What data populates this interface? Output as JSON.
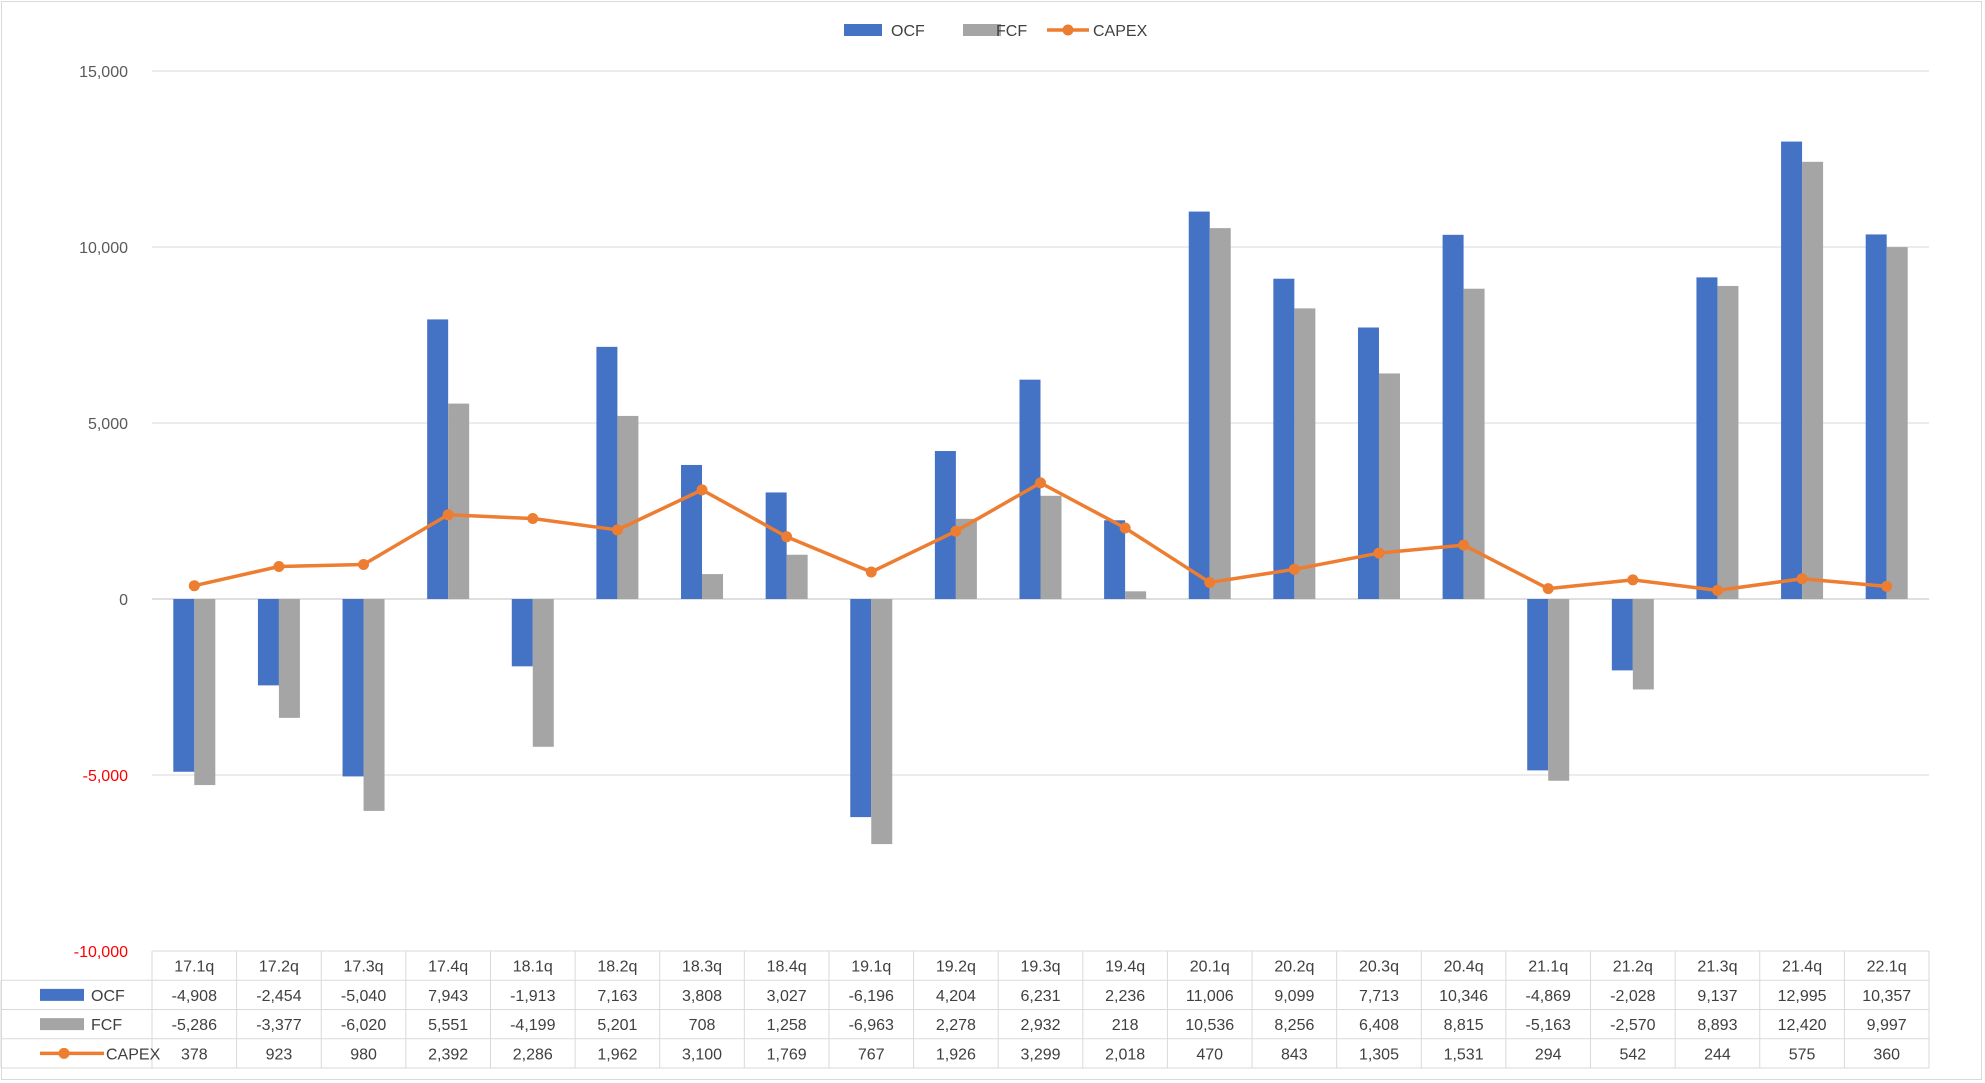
{
  "chart_data": {
    "type": "bar",
    "categories": [
      "17.1q",
      "17.2q",
      "17.3q",
      "17.4q",
      "18.1q",
      "18.2q",
      "18.3q",
      "18.4q",
      "19.1q",
      "19.2q",
      "19.3q",
      "19.4q",
      "20.1q",
      "20.2q",
      "20.3q",
      "20.4q",
      "21.1q",
      "21.2q",
      "21.3q",
      "21.4q",
      "22.1q"
    ],
    "series": [
      {
        "name": "OCF",
        "type": "bar",
        "color": "#4472c4",
        "values": [
          -4908,
          -2454,
          -5040,
          7943,
          -1913,
          7163,
          3808,
          3027,
          -6196,
          4204,
          6231,
          2236,
          11006,
          9099,
          7713,
          10346,
          -4869,
          -2028,
          9137,
          12995,
          10357
        ],
        "labels": [
          "-4,908",
          "-2,454",
          "-5,040",
          "7,943",
          "-1,913",
          "7,163",
          "3,808",
          "3,027",
          "-6,196",
          "4,204",
          "6,231",
          "2,236",
          "11,006",
          "9,099",
          "7,713",
          "10,346",
          "-4,869",
          "-2,028",
          "9,137",
          "12,995",
          "10,357"
        ]
      },
      {
        "name": "FCF",
        "type": "bar",
        "color": "#a5a5a5",
        "values": [
          -5286,
          -3377,
          -6020,
          5551,
          -4199,
          5201,
          708,
          1258,
          -6963,
          2278,
          2932,
          218,
          10536,
          8256,
          6408,
          8815,
          -5163,
          -2570,
          8893,
          12420,
          9997
        ],
        "labels": [
          "-5,286",
          "-3,377",
          "-6,020",
          "5,551",
          "-4,199",
          "5,201",
          "708",
          "1,258",
          "-6,963",
          "2,278",
          "2,932",
          "218",
          "10,536",
          "8,256",
          "6,408",
          "8,815",
          "-5,163",
          "-2,570",
          "8,893",
          "12,420",
          "9,997"
        ]
      },
      {
        "name": "CAPEX",
        "type": "line",
        "color": "#ed7d31",
        "values": [
          378,
          923,
          980,
          2392,
          2286,
          1962,
          3100,
          1769,
          767,
          1926,
          3299,
          2018,
          470,
          843,
          1305,
          1531,
          294,
          542,
          244,
          575,
          360
        ],
        "labels": [
          "378",
          "923",
          "980",
          "2,392",
          "2,286",
          "1,962",
          "3,100",
          "1,769",
          "767",
          "1,926",
          "3,299",
          "2,018",
          "470",
          "843",
          "1,305",
          "1,531",
          "294",
          "542",
          "244",
          "575",
          "360"
        ]
      }
    ],
    "ylim": [
      -10000,
      15000
    ],
    "yticks": [
      {
        "value": 15000,
        "label": "15,000",
        "negative": false
      },
      {
        "value": 10000,
        "label": "10,000",
        "negative": false
      },
      {
        "value": 5000,
        "label": "5,000",
        "negative": false
      },
      {
        "value": 0,
        "label": "0",
        "negative": false
      },
      {
        "value": -5000,
        "label": "-5,000",
        "negative": true
      },
      {
        "value": -10000,
        "label": "-10,000",
        "negative": true
      }
    ],
    "grid": true,
    "legend": "top-center",
    "data_table": true,
    "title": "",
    "xlabel": "",
    "ylabel": ""
  }
}
